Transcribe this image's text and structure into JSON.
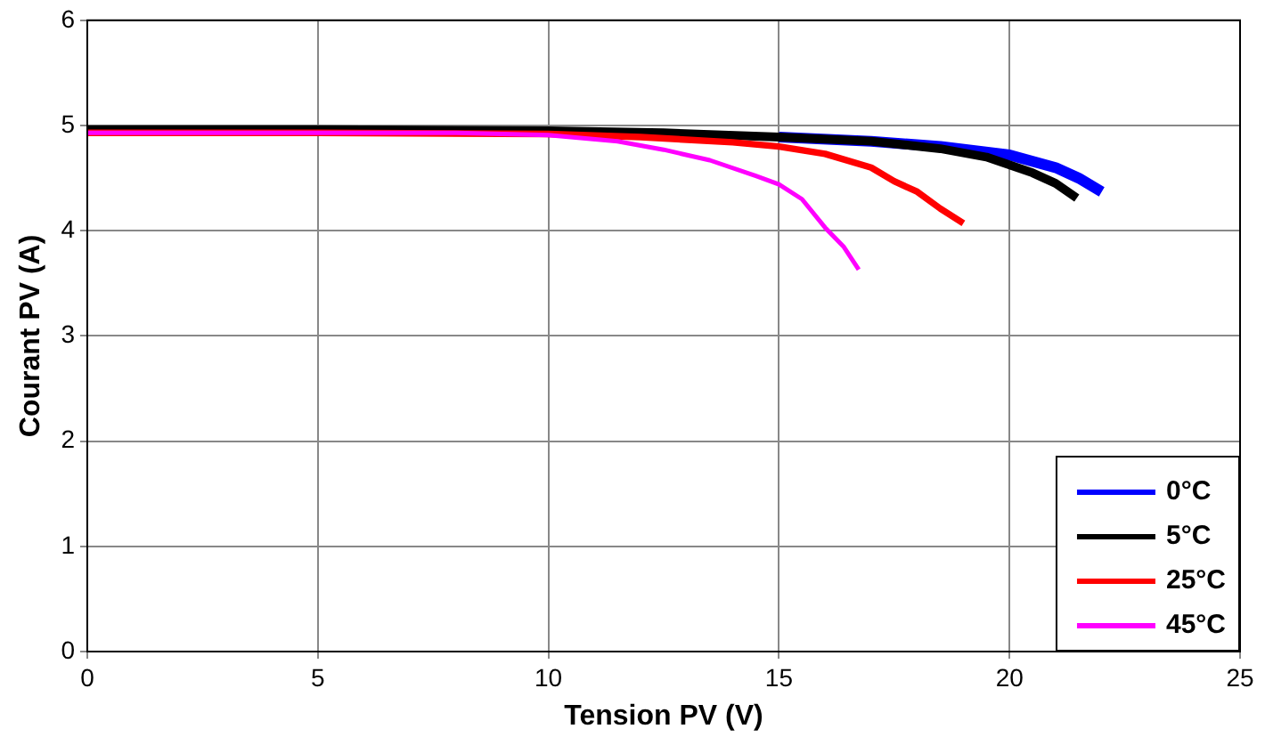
{
  "chart_data": {
    "type": "line",
    "xlabel": "Tension PV (V)",
    "ylabel": "Courant PV (A)",
    "xlim": [
      0,
      25
    ],
    "xticks": [
      0,
      5,
      10,
      15,
      20,
      25
    ],
    "ylim": [
      0,
      6
    ],
    "yticks": [
      0,
      1,
      2,
      3,
      4,
      5,
      6
    ],
    "grid": true,
    "legend": "bottom right",
    "marker": "none",
    "line_style": "solid",
    "series": [
      {
        "name": "0°C",
        "color": "#0000ff",
        "x": [
          15,
          17,
          18.5,
          20,
          21,
          21.5,
          22
        ],
        "values": [
          4.89,
          4.85,
          4.8,
          4.72,
          4.6,
          4.5,
          4.37
        ]
      },
      {
        "name": "5°C",
        "color": "#000000",
        "x": [
          0,
          5,
          10,
          12.5,
          15,
          17,
          18.5,
          19.5,
          20.5,
          21,
          21.46
        ],
        "values": [
          4.96,
          4.96,
          4.95,
          4.93,
          4.89,
          4.85,
          4.78,
          4.7,
          4.55,
          4.45,
          4.31
        ]
      },
      {
        "name": "25°C",
        "color": "#ff0000",
        "x": [
          0,
          5,
          10,
          12,
          14,
          15,
          16,
          17,
          17.5,
          18,
          18.5,
          19
        ],
        "values": [
          4.93,
          4.93,
          4.92,
          4.89,
          4.84,
          4.8,
          4.73,
          4.6,
          4.47,
          4.37,
          4.21,
          4.07
        ]
      },
      {
        "name": "45°C",
        "color": "#ff00ff",
        "x": [
          0,
          5,
          8,
          10,
          11.5,
          12.5,
          13.5,
          14.5,
          15,
          15.5,
          16,
          16.4,
          16.73
        ],
        "values": [
          4.93,
          4.93,
          4.93,
          4.91,
          4.85,
          4.77,
          4.67,
          4.52,
          4.44,
          4.3,
          4.03,
          3.85,
          3.63
        ]
      }
    ]
  }
}
